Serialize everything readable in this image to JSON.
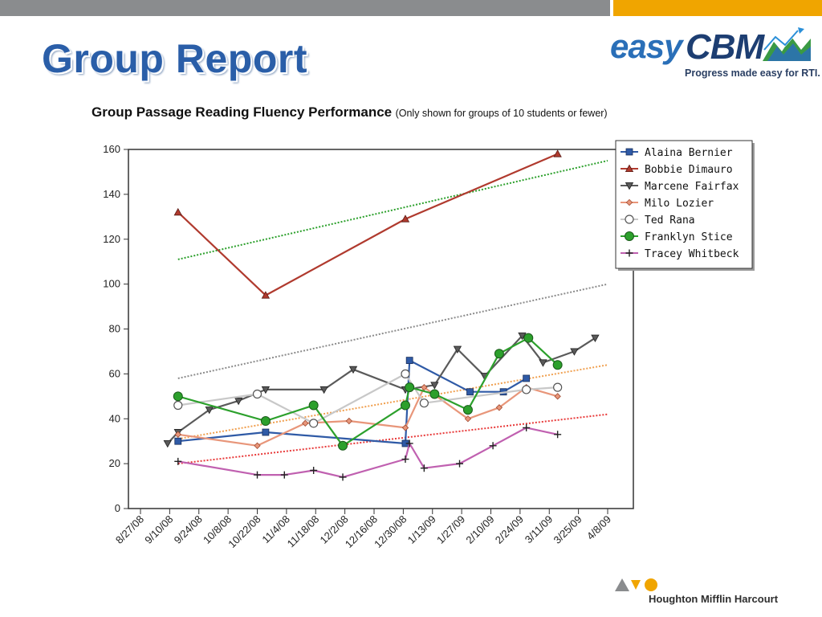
{
  "slide": {
    "title": "Group Report",
    "logo": {
      "easy": "easy",
      "cbm": "CBM",
      "tagline": "Progress made easy for RTI."
    },
    "footer_brand": "Houghton Mifflin Harcourt"
  },
  "chart_data": {
    "type": "line",
    "title": "Group Passage Reading Fluency Performance",
    "subtitle": "(Only shown for groups of 10 students or fewer)",
    "xlabel": "",
    "ylabel": "",
    "x_ticks": [
      "8/27/08",
      "9/10/08",
      "9/24/08",
      "10/8/08",
      "10/22/08",
      "11/4/08",
      "11/18/08",
      "12/2/08",
      "12/16/08",
      "12/30/08",
      "1/13/09",
      "1/27/09",
      "2/10/09",
      "2/24/09",
      "3/11/09",
      "3/25/09",
      "4/8/09"
    ],
    "x_range": [
      "2008-08-27",
      "2009-04-08"
    ],
    "ylim": [
      0,
      160
    ],
    "y_ticks": [
      0,
      20,
      40,
      60,
      80,
      100,
      120,
      140,
      160
    ],
    "grid": false,
    "legend_position": "top-right",
    "series": [
      {
        "name": "Alaina Bernier",
        "color": "#2f5aa6",
        "marker": "square",
        "points": [
          [
            "2008-09-14",
            30
          ],
          [
            "2008-10-26",
            34
          ],
          [
            "2009-01-01",
            29
          ],
          [
            "2009-01-03",
            66
          ],
          [
            "2009-02-01",
            52
          ],
          [
            "2009-02-17",
            52
          ],
          [
            "2009-02-28",
            58
          ]
        ]
      },
      {
        "name": "Bobbie Dimauro",
        "color": "#b03a2e",
        "marker": "triangle-up",
        "points": [
          [
            "2008-09-14",
            132
          ],
          [
            "2008-10-26",
            95
          ],
          [
            "2009-01-01",
            129
          ],
          [
            "2009-03-15",
            158
          ]
        ]
      },
      {
        "name": "Marcene Fairfax",
        "color": "#5a5a5a",
        "marker": "triangle-down",
        "points": [
          [
            "2008-09-09",
            29
          ],
          [
            "2008-09-14",
            34
          ],
          [
            "2008-09-29",
            44
          ],
          [
            "2008-10-13",
            48
          ],
          [
            "2008-10-26",
            53
          ],
          [
            "2008-11-23",
            53
          ],
          [
            "2008-12-07",
            62
          ],
          [
            "2009-01-01",
            53
          ],
          [
            "2009-01-15",
            55
          ],
          [
            "2009-01-26",
            71
          ],
          [
            "2009-02-08",
            59
          ],
          [
            "2009-02-26",
            77
          ],
          [
            "2009-03-08",
            65
          ],
          [
            "2009-03-23",
            70
          ],
          [
            "2009-04-02",
            76
          ]
        ]
      },
      {
        "name": "Milo Lozier",
        "color": "#e8967a",
        "marker": "diamond",
        "points": [
          [
            "2008-09-14",
            33
          ],
          [
            "2008-10-22",
            28
          ],
          [
            "2008-11-14",
            38
          ],
          [
            "2008-12-05",
            39
          ],
          [
            "2009-01-01",
            36
          ],
          [
            "2009-01-10",
            54
          ],
          [
            "2009-01-31",
            40
          ],
          [
            "2009-02-15",
            45
          ],
          [
            "2009-02-28",
            54
          ],
          [
            "2009-03-15",
            50
          ]
        ]
      },
      {
        "name": "Ted Rana",
        "color": "#c8c8c8",
        "marker": "circle-open",
        "points": [
          [
            "2008-09-14",
            46
          ],
          [
            "2008-10-22",
            51
          ],
          [
            "2008-11-18",
            38
          ],
          [
            "2009-01-01",
            60
          ],
          [
            "2009-01-10",
            47
          ],
          [
            "2009-02-28",
            53
          ],
          [
            "2009-03-15",
            54
          ]
        ]
      },
      {
        "name": "Franklyn Stice",
        "color": "#2ca02c",
        "marker": "circle",
        "points": [
          [
            "2008-09-14",
            50
          ],
          [
            "2008-10-26",
            39
          ],
          [
            "2008-11-18",
            46
          ],
          [
            "2008-12-02",
            28
          ],
          [
            "2009-01-01",
            46
          ],
          [
            "2009-01-03",
            54
          ],
          [
            "2009-01-15",
            51
          ],
          [
            "2009-01-31",
            44
          ],
          [
            "2009-02-15",
            69
          ],
          [
            "2009-03-01",
            76
          ],
          [
            "2009-03-15",
            64
          ]
        ]
      },
      {
        "name": "Tracey Whitbeck",
        "color": "#c060b0",
        "marker": "plus",
        "points": [
          [
            "2008-09-14",
            21
          ],
          [
            "2008-10-22",
            15
          ],
          [
            "2008-11-04",
            15
          ],
          [
            "2008-11-18",
            17
          ],
          [
            "2008-12-02",
            14
          ],
          [
            "2009-01-01",
            22
          ],
          [
            "2009-01-03",
            29
          ],
          [
            "2009-01-10",
            18
          ],
          [
            "2009-01-27",
            20
          ],
          [
            "2009-02-12",
            28
          ],
          [
            "2009-02-28",
            36
          ],
          [
            "2009-03-15",
            33
          ]
        ]
      }
    ],
    "trend_lines": [
      {
        "color": "#2ca02c",
        "from": [
          "2008-09-14",
          111
        ],
        "to": [
          "2009-04-08",
          155
        ]
      },
      {
        "color": "#8c8c8c",
        "from": [
          "2008-09-14",
          58
        ],
        "to": [
          "2009-04-08",
          100
        ]
      },
      {
        "color": "#f0a050",
        "from": [
          "2008-09-14",
          31
        ],
        "to": [
          "2009-04-08",
          64
        ]
      },
      {
        "color": "#e83a3a",
        "from": [
          "2008-09-14",
          20
        ],
        "to": [
          "2009-04-08",
          42
        ]
      }
    ]
  }
}
